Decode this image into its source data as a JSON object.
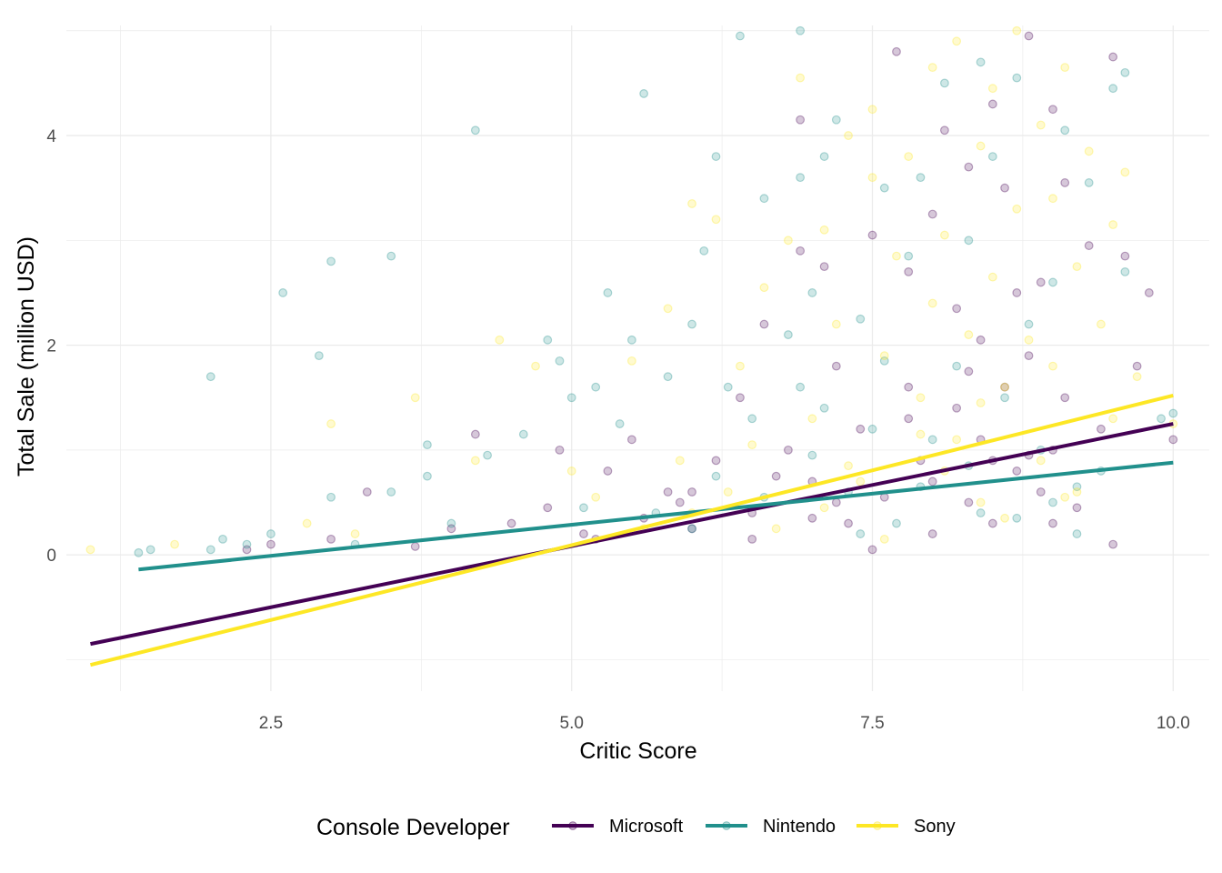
{
  "chart_data": {
    "type": "scatter",
    "title": "",
    "xlabel": "Critic Score",
    "ylabel": "Total Sale (million USD)",
    "xlim": [
      0.8,
      10.3
    ],
    "ylim": [
      -1.3,
      5.05
    ],
    "x_ticks": [
      2.5,
      5.0,
      7.5,
      10.0
    ],
    "x_tick_labels": [
      "2.5",
      "5.0",
      "7.5",
      "10.0"
    ],
    "y_ticks": [
      0,
      2,
      4
    ],
    "y_tick_labels": [
      "0",
      "2",
      "4"
    ],
    "grid": true,
    "legend": {
      "title": "Console Developer",
      "position": "bottom"
    },
    "series": [
      {
        "name": "Microsoft",
        "color": "#440154",
        "trend": {
          "x": [
            1.0,
            10.0
          ],
          "y": [
            -0.85,
            1.25
          ]
        },
        "points": [
          [
            2.3,
            0.05
          ],
          [
            2.5,
            0.1
          ],
          [
            3.0,
            0.15
          ],
          [
            3.3,
            0.6
          ],
          [
            3.7,
            0.08
          ],
          [
            4.0,
            0.25
          ],
          [
            4.2,
            1.15
          ],
          [
            4.5,
            0.3
          ],
          [
            4.8,
            0.45
          ],
          [
            4.9,
            1.0
          ],
          [
            5.1,
            0.2
          ],
          [
            5.3,
            0.8
          ],
          [
            5.5,
            1.1
          ],
          [
            5.6,
            0.35
          ],
          [
            5.8,
            0.6
          ],
          [
            6.0,
            0.25
          ],
          [
            6.2,
            0.9
          ],
          [
            6.4,
            1.5
          ],
          [
            6.5,
            0.4
          ],
          [
            6.6,
            2.2
          ],
          [
            6.8,
            1.0
          ],
          [
            6.9,
            2.9
          ],
          [
            6.9,
            4.15
          ],
          [
            7.0,
            0.7
          ],
          [
            7.1,
            2.75
          ],
          [
            7.2,
            1.8
          ],
          [
            7.3,
            0.3
          ],
          [
            7.4,
            1.2
          ],
          [
            7.5,
            3.05
          ],
          [
            7.6,
            0.55
          ],
          [
            7.7,
            4.8
          ],
          [
            7.8,
            1.6
          ],
          [
            7.8,
            2.7
          ],
          [
            7.9,
            0.9
          ],
          [
            8.0,
            3.25
          ],
          [
            8.0,
            0.2
          ],
          [
            8.1,
            4.05
          ],
          [
            8.2,
            1.4
          ],
          [
            8.2,
            2.35
          ],
          [
            8.3,
            0.5
          ],
          [
            8.3,
            3.7
          ],
          [
            8.4,
            1.1
          ],
          [
            8.4,
            2.05
          ],
          [
            8.5,
            0.3
          ],
          [
            8.5,
            4.3
          ],
          [
            8.6,
            3.5
          ],
          [
            8.6,
            1.6
          ],
          [
            8.7,
            0.8
          ],
          [
            8.7,
            2.5
          ],
          [
            8.8,
            1.9
          ],
          [
            8.8,
            4.95
          ],
          [
            8.9,
            0.6
          ],
          [
            8.9,
            2.6
          ],
          [
            9.0,
            4.25
          ],
          [
            9.0,
            1.0
          ],
          [
            9.1,
            3.55
          ],
          [
            9.1,
            1.5
          ],
          [
            9.2,
            0.45
          ],
          [
            9.3,
            2.95
          ],
          [
            9.4,
            1.2
          ],
          [
            9.5,
            4.75
          ],
          [
            9.5,
            0.1
          ],
          [
            9.6,
            2.85
          ],
          [
            9.7,
            1.8
          ],
          [
            9.8,
            2.5
          ],
          [
            10.0,
            1.1
          ],
          [
            6.0,
            0.6
          ],
          [
            6.5,
            0.15
          ],
          [
            7.0,
            0.35
          ],
          [
            7.5,
            0.05
          ],
          [
            8.0,
            0.7
          ],
          [
            8.5,
            0.9
          ],
          [
            9.0,
            0.3
          ],
          [
            7.2,
            0.5
          ],
          [
            7.8,
            1.3
          ],
          [
            8.3,
            1.75
          ],
          [
            8.8,
            0.95
          ],
          [
            6.7,
            0.75
          ],
          [
            5.9,
            0.5
          ],
          [
            5.2,
            0.15
          ]
        ]
      },
      {
        "name": "Nintendo",
        "color": "#21908C",
        "trend": {
          "x": [
            1.4,
            10.0
          ],
          "y": [
            -0.14,
            0.88
          ]
        },
        "points": [
          [
            1.4,
            0.02
          ],
          [
            1.5,
            0.05
          ],
          [
            2.0,
            0.05
          ],
          [
            2.0,
            1.7
          ],
          [
            2.1,
            0.15
          ],
          [
            2.3,
            0.1
          ],
          [
            2.5,
            0.2
          ],
          [
            2.6,
            2.5
          ],
          [
            2.9,
            1.9
          ],
          [
            3.0,
            0.55
          ],
          [
            3.0,
            2.8
          ],
          [
            3.2,
            0.1
          ],
          [
            3.5,
            2.85
          ],
          [
            3.5,
            0.6
          ],
          [
            3.8,
            0.75
          ],
          [
            3.8,
            1.05
          ],
          [
            4.0,
            0.3
          ],
          [
            4.2,
            4.05
          ],
          [
            4.3,
            0.95
          ],
          [
            4.6,
            1.15
          ],
          [
            4.8,
            2.05
          ],
          [
            4.9,
            1.85
          ],
          [
            5.0,
            1.5
          ],
          [
            5.1,
            0.45
          ],
          [
            5.2,
            1.6
          ],
          [
            5.3,
            2.5
          ],
          [
            5.4,
            1.25
          ],
          [
            5.5,
            2.05
          ],
          [
            5.6,
            4.4
          ],
          [
            5.8,
            1.7
          ],
          [
            6.0,
            0.25
          ],
          [
            6.0,
            2.2
          ],
          [
            6.1,
            2.9
          ],
          [
            6.2,
            3.8
          ],
          [
            6.3,
            1.6
          ],
          [
            6.4,
            4.95
          ],
          [
            6.5,
            1.3
          ],
          [
            6.6,
            3.4
          ],
          [
            6.8,
            2.1
          ],
          [
            6.9,
            5.0
          ],
          [
            6.9,
            3.6
          ],
          [
            7.0,
            2.5
          ],
          [
            7.1,
            1.4
          ],
          [
            7.1,
            3.8
          ],
          [
            7.2,
            4.15
          ],
          [
            7.3,
            0.6
          ],
          [
            7.4,
            2.25
          ],
          [
            7.5,
            1.2
          ],
          [
            7.6,
            3.5
          ],
          [
            7.7,
            0.3
          ],
          [
            7.8,
            2.85
          ],
          [
            7.9,
            3.6
          ],
          [
            8.0,
            1.1
          ],
          [
            8.1,
            4.5
          ],
          [
            8.2,
            1.8
          ],
          [
            8.3,
            3.0
          ],
          [
            8.4,
            4.7
          ],
          [
            8.4,
            0.4
          ],
          [
            8.5,
            3.8
          ],
          [
            8.6,
            1.5
          ],
          [
            8.7,
            4.55
          ],
          [
            8.8,
            2.2
          ],
          [
            8.9,
            1.0
          ],
          [
            9.0,
            2.6
          ],
          [
            9.0,
            0.5
          ],
          [
            9.1,
            4.05
          ],
          [
            9.2,
            0.2
          ],
          [
            9.3,
            3.55
          ],
          [
            9.4,
            0.8
          ],
          [
            9.5,
            4.45
          ],
          [
            9.6,
            2.7
          ],
          [
            9.6,
            4.6
          ],
          [
            9.9,
            1.3
          ],
          [
            10.0,
            1.35
          ],
          [
            6.2,
            0.75
          ],
          [
            6.6,
            0.55
          ],
          [
            7.0,
            0.95
          ],
          [
            7.4,
            0.2
          ],
          [
            7.9,
            0.65
          ],
          [
            8.3,
            0.85
          ],
          [
            8.7,
            0.35
          ],
          [
            9.2,
            0.65
          ],
          [
            5.7,
            0.4
          ],
          [
            6.9,
            1.6
          ],
          [
            7.6,
            1.85
          ]
        ]
      },
      {
        "name": "Sony",
        "color": "#FDE725",
        "trend": {
          "x": [
            1.0,
            10.0
          ],
          "y": [
            -1.05,
            1.52
          ]
        },
        "points": [
          [
            1.0,
            0.05
          ],
          [
            1.7,
            0.1
          ],
          [
            2.8,
            0.3
          ],
          [
            3.0,
            1.25
          ],
          [
            3.2,
            0.2
          ],
          [
            3.7,
            1.5
          ],
          [
            4.2,
            0.9
          ],
          [
            4.4,
            2.05
          ],
          [
            4.7,
            1.8
          ],
          [
            5.0,
            0.8
          ],
          [
            5.2,
            0.55
          ],
          [
            5.5,
            1.85
          ],
          [
            5.8,
            2.35
          ],
          [
            6.0,
            0.4
          ],
          [
            6.0,
            3.35
          ],
          [
            6.2,
            3.2
          ],
          [
            6.4,
            1.8
          ],
          [
            6.6,
            2.55
          ],
          [
            6.8,
            3.0
          ],
          [
            6.9,
            4.55
          ],
          [
            7.0,
            1.3
          ],
          [
            7.1,
            3.1
          ],
          [
            7.2,
            2.2
          ],
          [
            7.3,
            4.0
          ],
          [
            7.4,
            0.7
          ],
          [
            7.5,
            3.6
          ],
          [
            7.5,
            4.25
          ],
          [
            7.6,
            1.9
          ],
          [
            7.7,
            2.85
          ],
          [
            7.8,
            3.8
          ],
          [
            7.9,
            1.5
          ],
          [
            8.0,
            4.65
          ],
          [
            8.0,
            2.4
          ],
          [
            8.1,
            3.05
          ],
          [
            8.2,
            4.9
          ],
          [
            8.2,
            1.1
          ],
          [
            8.3,
            2.1
          ],
          [
            8.4,
            3.9
          ],
          [
            8.4,
            0.5
          ],
          [
            8.5,
            4.45
          ],
          [
            8.5,
            2.65
          ],
          [
            8.6,
            1.6
          ],
          [
            8.7,
            3.3
          ],
          [
            8.7,
            5.0
          ],
          [
            8.8,
            2.05
          ],
          [
            8.9,
            4.1
          ],
          [
            8.9,
            0.9
          ],
          [
            9.0,
            3.4
          ],
          [
            9.0,
            1.8
          ],
          [
            9.1,
            4.65
          ],
          [
            9.2,
            2.75
          ],
          [
            9.2,
            0.6
          ],
          [
            9.3,
            3.85
          ],
          [
            9.4,
            2.2
          ],
          [
            9.5,
            3.15
          ],
          [
            9.5,
            1.3
          ],
          [
            9.6,
            3.65
          ],
          [
            9.7,
            1.7
          ],
          [
            10.0,
            1.25
          ],
          [
            6.3,
            0.6
          ],
          [
            6.7,
            0.25
          ],
          [
            7.1,
            0.45
          ],
          [
            7.6,
            0.15
          ],
          [
            8.1,
            0.8
          ],
          [
            8.6,
            0.35
          ],
          [
            9.1,
            0.55
          ],
          [
            7.9,
            1.15
          ],
          [
            8.4,
            1.45
          ],
          [
            5.6,
            0.25
          ],
          [
            5.9,
            0.9
          ],
          [
            6.5,
            1.05
          ],
          [
            7.3,
            0.85
          ]
        ]
      }
    ]
  }
}
